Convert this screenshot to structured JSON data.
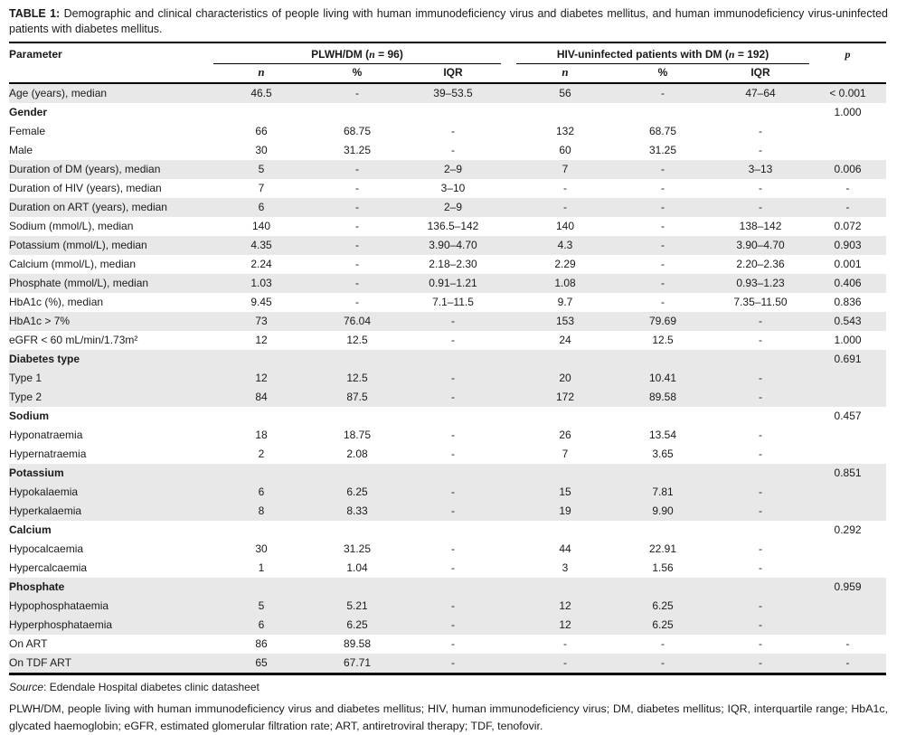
{
  "caption": {
    "label": "TABLE 1:",
    "text": "Demographic and clinical characteristics of people living with human immunodeficiency virus and diabetes mellitus, and human immunodeficiency virus-uninfected patients with diabetes mellitus."
  },
  "table": {
    "param_header": "Parameter",
    "p_header": "p",
    "groups": [
      {
        "label": "PLWH/DM (n = 96)",
        "sub": [
          "n",
          "%",
          "IQR"
        ]
      },
      {
        "label": "HIV-uninfected patients with DM (n = 192)",
        "sub": [
          "n",
          "%",
          "IQR"
        ]
      }
    ],
    "rows": [
      {
        "label": "Age (years), median",
        "bold": false,
        "shaded": true,
        "values": [
          "46.5",
          "-",
          "39–53.5",
          "56",
          "-",
          "47–64"
        ],
        "p": "< 0.001"
      },
      {
        "label": "Gender",
        "bold": true,
        "shaded": false,
        "values": [
          "",
          "",
          "",
          "",
          "",
          ""
        ],
        "p": "1.000"
      },
      {
        "label": "Female",
        "bold": false,
        "shaded": false,
        "values": [
          "66",
          "68.75",
          "-",
          "132",
          "68.75",
          "-"
        ],
        "p": ""
      },
      {
        "label": "Male",
        "bold": false,
        "shaded": false,
        "values": [
          "30",
          "31.25",
          "-",
          "60",
          "31.25",
          "-"
        ],
        "p": ""
      },
      {
        "label": "Duration of DM (years), median",
        "bold": false,
        "shaded": true,
        "values": [
          "5",
          "-",
          "2–9",
          "7",
          "-",
          "3–13"
        ],
        "p": "0.006"
      },
      {
        "label": "Duration of HIV (years), median",
        "bold": false,
        "shaded": false,
        "values": [
          "7",
          "-",
          "3–10",
          "-",
          "-",
          "-"
        ],
        "p": "-"
      },
      {
        "label": "Duration on ART (years), median",
        "bold": false,
        "shaded": true,
        "values": [
          "6",
          "-",
          "2–9",
          "-",
          "-",
          "-"
        ],
        "p": "-"
      },
      {
        "label": "Sodium (mmol/L), median",
        "bold": false,
        "shaded": false,
        "values": [
          "140",
          "-",
          "136.5–142",
          "140",
          "-",
          "138–142"
        ],
        "p": "0.072"
      },
      {
        "label": "Potassium (mmol/L), median",
        "bold": false,
        "shaded": true,
        "values": [
          "4.35",
          "-",
          "3.90–4.70",
          "4.3",
          "-",
          "3.90–4.70"
        ],
        "p": "0.903"
      },
      {
        "label": "Calcium (mmol/L), median",
        "bold": false,
        "shaded": false,
        "values": [
          "2.24",
          "-",
          "2.18–2.30",
          "2.29",
          "-",
          "2.20–2.36"
        ],
        "p": "0.001"
      },
      {
        "label": "Phosphate (mmol/L), median",
        "bold": false,
        "shaded": true,
        "values": [
          "1.03",
          "-",
          "0.91–1.21",
          "1.08",
          "-",
          "0.93–1.23"
        ],
        "p": "0.406"
      },
      {
        "label": "HbA1c (%), median",
        "bold": false,
        "shaded": false,
        "values": [
          "9.45",
          "-",
          "7.1–11.5",
          "9.7",
          "-",
          "7.35–11.50"
        ],
        "p": "0.836"
      },
      {
        "label": "HbA1c > 7%",
        "bold": false,
        "shaded": true,
        "values": [
          "73",
          "76.04",
          "-",
          "153",
          "79.69",
          "-"
        ],
        "p": "0.543"
      },
      {
        "label": "eGFR < 60 mL/min/1.73m²",
        "bold": false,
        "shaded": false,
        "values": [
          "12",
          "12.5",
          "-",
          "24",
          "12.5",
          "-"
        ],
        "p": "1.000"
      },
      {
        "label": "Diabetes type",
        "bold": true,
        "shaded": true,
        "values": [
          "",
          "",
          "",
          "",
          "",
          ""
        ],
        "p": "0.691"
      },
      {
        "label": "Type 1",
        "bold": false,
        "shaded": true,
        "values": [
          "12",
          "12.5",
          "-",
          "20",
          "10.41",
          "-"
        ],
        "p": ""
      },
      {
        "label": "Type 2",
        "bold": false,
        "shaded": true,
        "values": [
          "84",
          "87.5",
          "-",
          "172",
          "89.58",
          "-"
        ],
        "p": ""
      },
      {
        "label": "Sodium",
        "bold": true,
        "shaded": false,
        "values": [
          "",
          "",
          "",
          "",
          "",
          ""
        ],
        "p": "0.457"
      },
      {
        "label": "Hyponatraemia",
        "bold": false,
        "shaded": false,
        "values": [
          "18",
          "18.75",
          "-",
          "26",
          "13.54",
          "-"
        ],
        "p": ""
      },
      {
        "label": "Hypernatraemia",
        "bold": false,
        "shaded": false,
        "values": [
          "2",
          "2.08",
          "-",
          "7",
          "3.65",
          "-"
        ],
        "p": ""
      },
      {
        "label": "Potassium",
        "bold": true,
        "shaded": true,
        "values": [
          "",
          "",
          "",
          "",
          "",
          ""
        ],
        "p": "0.851"
      },
      {
        "label": "Hypokalaemia",
        "bold": false,
        "shaded": true,
        "values": [
          "6",
          "6.25",
          "-",
          "15",
          "7.81",
          "-"
        ],
        "p": ""
      },
      {
        "label": "Hyperkalaemia",
        "bold": false,
        "shaded": true,
        "values": [
          "8",
          "8.33",
          "-",
          "19",
          "9.90",
          "-"
        ],
        "p": ""
      },
      {
        "label": "Calcium",
        "bold": true,
        "shaded": false,
        "values": [
          "",
          "",
          "",
          "",
          "",
          ""
        ],
        "p": "0.292"
      },
      {
        "label": "Hypocalcaemia",
        "bold": false,
        "shaded": false,
        "values": [
          "30",
          "31.25",
          "-",
          "44",
          "22.91",
          "-"
        ],
        "p": ""
      },
      {
        "label": "Hypercalcaemia",
        "bold": false,
        "shaded": false,
        "values": [
          "1",
          "1.04",
          "-",
          "3",
          "1.56",
          "-"
        ],
        "p": ""
      },
      {
        "label": "Phosphate",
        "bold": true,
        "shaded": true,
        "values": [
          "",
          "",
          "",
          "",
          "",
          ""
        ],
        "p": "0.959"
      },
      {
        "label": "Hypophosphataemia",
        "bold": false,
        "shaded": true,
        "values": [
          "5",
          "5.21",
          "-",
          "12",
          "6.25",
          "-"
        ],
        "p": ""
      },
      {
        "label": "Hyperphosphataemia",
        "bold": false,
        "shaded": true,
        "values": [
          "6",
          "6.25",
          "-",
          "12",
          "6.25",
          "-"
        ],
        "p": ""
      },
      {
        "label": "On ART",
        "bold": false,
        "shaded": false,
        "values": [
          "86",
          "89.58",
          "-",
          "-",
          "-",
          "-"
        ],
        "p": "-"
      },
      {
        "label": "On TDF ART",
        "bold": false,
        "shaded": true,
        "values": [
          "65",
          "67.71",
          "-",
          "-",
          "-",
          "-"
        ],
        "p": "-"
      }
    ]
  },
  "footer": {
    "source_label": "Source",
    "source_text": ": Edendale Hospital diabetes clinic datasheet",
    "abbreviations": "PLWH/DM, people living with human immunodeficiency virus and diabetes mellitus; HIV, human immunodeficiency virus; DM, diabetes mellitus; IQR, interquartile range; HbA1c, glycated haemoglobin; eGFR, estimated glomerular filtration rate; ART, antiretroviral therapy; TDF, tenofovir."
  }
}
